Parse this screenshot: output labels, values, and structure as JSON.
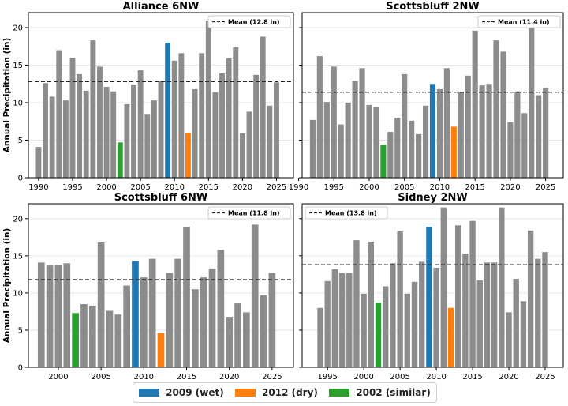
{
  "shared": {
    "ylabel": "Annual Precipitation (in)",
    "colors": {
      "normal": "#8c8c8c",
      "wet": "#1f77b4",
      "dry": "#ff7f0e",
      "similar": "#2ca02c",
      "mean": "#222222"
    }
  },
  "legend": [
    {
      "label": "2009 (wet)",
      "color": "#1f77b4"
    },
    {
      "label": "2012 (dry)",
      "color": "#ff7f0e"
    },
    {
      "label": "2002 (similar)",
      "color": "#2ca02c"
    }
  ],
  "chart_data": [
    {
      "type": "bar",
      "title": "Alliance 6NW",
      "mean": 12.8,
      "mean_label": "Mean (12.8 in)",
      "legend_position": "top-right",
      "xlim": [
        1988.5,
        2027.5
      ],
      "ylim": [
        0,
        22
      ],
      "xticks": [
        1990,
        1995,
        2000,
        2005,
        2010,
        2015,
        2020,
        2025
      ],
      "yticks": [
        0,
        5,
        10,
        15,
        20
      ],
      "years": [
        1990,
        1991,
        1992,
        1993,
        1994,
        1995,
        1996,
        1997,
        1998,
        1999,
        2000,
        2001,
        2002,
        2003,
        2004,
        2005,
        2006,
        2007,
        2008,
        2009,
        2010,
        2011,
        2012,
        2013,
        2014,
        2015,
        2016,
        2017,
        2018,
        2019,
        2020,
        2021,
        2022,
        2023,
        2024,
        2025
      ],
      "values": [
        4.1,
        12.6,
        10.8,
        17.0,
        10.3,
        16.0,
        13.8,
        11.6,
        18.3,
        14.8,
        12.1,
        11.5,
        4.7,
        9.8,
        12.4,
        14.3,
        8.5,
        10.3,
        12.9,
        18.0,
        15.6,
        16.6,
        6.0,
        11.8,
        16.6,
        20.9,
        11.4,
        13.9,
        15.9,
        17.4,
        5.9,
        8.8,
        13.7,
        18.8,
        9.6,
        12.7
      ]
    },
    {
      "type": "bar",
      "title": "Scottsbluff 2NW",
      "mean": 11.4,
      "mean_label": "Mean (11.4 in)",
      "legend_position": "top-right",
      "xlim": [
        1990.5,
        2027.5
      ],
      "ylim": [
        0,
        22
      ],
      "xticks": [
        1990,
        1995,
        2000,
        2005,
        2010,
        2015,
        2020,
        2025
      ],
      "yticks": [
        0,
        5,
        10,
        15,
        20
      ],
      "years": [
        1992,
        1993,
        1994,
        1995,
        1996,
        1997,
        1998,
        1999,
        2000,
        2001,
        2002,
        2003,
        2004,
        2005,
        2006,
        2007,
        2008,
        2009,
        2010,
        2011,
        2012,
        2013,
        2014,
        2015,
        2016,
        2017,
        2018,
        2019,
        2020,
        2021,
        2022,
        2023,
        2024,
        2025
      ],
      "values": [
        7.7,
        16.2,
        10.1,
        14.8,
        7.1,
        10.0,
        12.9,
        14.6,
        9.7,
        9.4,
        4.4,
        6.1,
        8.0,
        13.8,
        7.6,
        5.8,
        9.6,
        12.5,
        11.8,
        14.6,
        6.8,
        11.4,
        13.6,
        19.6,
        12.3,
        12.5,
        18.3,
        16.8,
        7.4,
        11.5,
        8.6,
        20.0,
        11.0,
        12.0
      ]
    },
    {
      "type": "bar",
      "title": "Scottsbluff 6NW",
      "mean": 11.8,
      "mean_label": "Mean (11.8 in)",
      "legend_position": "top-right",
      "xlim": [
        1996.5,
        2027.5
      ],
      "ylim": [
        0,
        22
      ],
      "xticks": [
        2000,
        2005,
        2010,
        2015,
        2020,
        2025
      ],
      "yticks": [
        0,
        5,
        10,
        15,
        20
      ],
      "years": [
        1998,
        1999,
        2000,
        2001,
        2002,
        2003,
        2004,
        2005,
        2006,
        2007,
        2008,
        2009,
        2010,
        2011,
        2012,
        2013,
        2014,
        2015,
        2016,
        2017,
        2018,
        2019,
        2020,
        2021,
        2022,
        2023,
        2024,
        2025
      ],
      "values": [
        14.1,
        13.7,
        13.8,
        14.0,
        7.3,
        8.5,
        8.3,
        16.8,
        7.6,
        7.1,
        11.0,
        14.3,
        12.1,
        14.6,
        4.6,
        12.7,
        14.6,
        18.9,
        10.5,
        12.1,
        13.3,
        15.8,
        6.8,
        8.6,
        7.4,
        19.2,
        9.7,
        12.7
      ]
    },
    {
      "type": "bar",
      "title": "Sidney 2NW",
      "mean": 13.8,
      "mean_label": "Mean (13.8 in)",
      "legend_position": "top-left",
      "xlim": [
        1991.5,
        2027.5
      ],
      "ylim": [
        0,
        22
      ],
      "xticks": [
        1995,
        2000,
        2005,
        2010,
        2015,
        2020,
        2025
      ],
      "yticks": [
        0,
        5,
        10,
        15,
        20
      ],
      "years": [
        1994,
        1995,
        1996,
        1997,
        1998,
        1999,
        2000,
        2001,
        2002,
        2003,
        2004,
        2005,
        2006,
        2007,
        2008,
        2009,
        2010,
        2011,
        2012,
        2013,
        2014,
        2015,
        2016,
        2017,
        2018,
        2019,
        2020,
        2021,
        2022,
        2023,
        2024,
        2025
      ],
      "values": [
        8.0,
        11.6,
        13.2,
        12.7,
        12.7,
        17.1,
        9.9,
        16.9,
        8.7,
        10.9,
        14.0,
        18.3,
        9.9,
        11.5,
        14.2,
        18.9,
        13.4,
        21.5,
        8.0,
        19.1,
        15.3,
        19.7,
        11.7,
        14.1,
        14.1,
        21.5,
        7.4,
        11.9,
        8.9,
        18.4,
        14.6,
        15.5
      ]
    }
  ],
  "highlights": {
    "wet": 2009,
    "dry": 2012,
    "similar": 2002
  }
}
